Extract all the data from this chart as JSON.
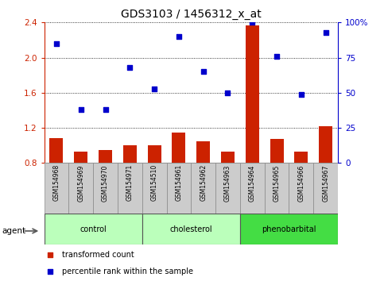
{
  "title": "GDS3103 / 1456312_x_at",
  "samples": [
    "GSM154968",
    "GSM154969",
    "GSM154970",
    "GSM154971",
    "GSM154510",
    "GSM154961",
    "GSM154962",
    "GSM154963",
    "GSM154964",
    "GSM154965",
    "GSM154966",
    "GSM154967"
  ],
  "groups": [
    {
      "label": "control",
      "start": 0,
      "end": 4,
      "color": "#bbffbb"
    },
    {
      "label": "cholesterol",
      "start": 4,
      "end": 8,
      "color": "#bbffbb"
    },
    {
      "label": "phenobarbital",
      "start": 8,
      "end": 12,
      "color": "#44dd44"
    }
  ],
  "transformed_count": [
    1.08,
    0.93,
    0.95,
    1.0,
    1.0,
    1.15,
    1.05,
    0.93,
    2.37,
    1.07,
    0.93,
    1.22
  ],
  "percentile_rank": [
    85,
    38,
    38,
    68,
    53,
    90,
    65,
    50,
    100,
    76,
    49,
    93
  ],
  "ylim_left": [
    0.8,
    2.4
  ],
  "ylim_right": [
    0,
    100
  ],
  "yticks_left": [
    0.8,
    1.2,
    1.6,
    2.0,
    2.4
  ],
  "yticks_right": [
    0,
    25,
    50,
    75,
    100
  ],
  "ytick_labels_right": [
    "0",
    "25",
    "50",
    "75",
    "100%"
  ],
  "bar_color": "#cc2200",
  "dot_color": "#0000cc",
  "bg_color": "#ffffff",
  "grid_color": "#000000",
  "tick_color_left": "#cc2200",
  "tick_color_right": "#0000cc",
  "sample_bg_color": "#cccccc",
  "agent_label": "agent"
}
